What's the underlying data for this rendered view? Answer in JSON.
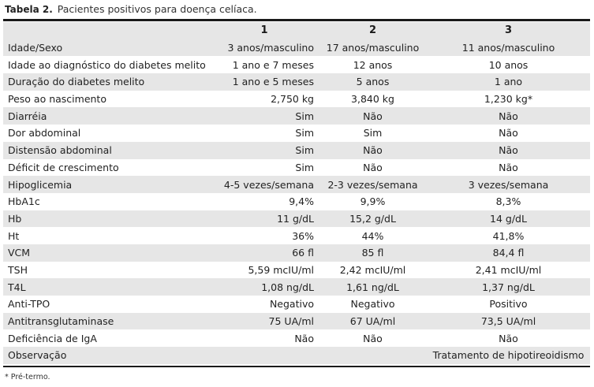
{
  "caption": {
    "label": "Tabela 2.",
    "title": "Pacientes positivos para doença celíaca."
  },
  "table": {
    "columns": [
      "",
      "1",
      "2",
      "3"
    ],
    "rows": [
      [
        "Idade/Sexo",
        "3 anos/masculino",
        "17 anos/masculino",
        "11 anos/masculino"
      ],
      [
        "Idade ao diagnóstico do diabetes melito",
        "1 ano e 7 meses",
        "12 anos",
        "10 anos"
      ],
      [
        "Duração do diabetes melito",
        "1 ano e 5 meses",
        "5 anos",
        "1 ano"
      ],
      [
        "Peso ao nascimento",
        "2,750 kg",
        "3,840 kg",
        "1,230 kg*"
      ],
      [
        "Diarréia",
        "Sim",
        "Não",
        "Não"
      ],
      [
        "Dor abdominal",
        "Sim",
        "Sim",
        "Não"
      ],
      [
        "Distensão abdominal",
        "Sim",
        "Não",
        "Não"
      ],
      [
        "Déficit de crescimento",
        "Sim",
        "Não",
        "Não"
      ],
      [
        "Hipoglicemia",
        "4-5 vezes/semana",
        "2-3 vezes/semana",
        "3 vezes/semana"
      ],
      [
        "HbA1c",
        "9,4%",
        "9,9%",
        "8,3%"
      ],
      [
        "Hb",
        "11 g/dL",
        "15,2 g/dL",
        "14 g/dL"
      ],
      [
        "Ht",
        "36%",
        "44%",
        "41,8%"
      ],
      [
        "VCM",
        "66 fl",
        "85 fl",
        "84,4 fl"
      ],
      [
        "TSH",
        "5,59 mcIU/ml",
        "2,42 mcIU/ml",
        "2,41 mcIU/ml"
      ],
      [
        "T4L",
        "1,08 ng/dL",
        "1,61 ng/dL",
        "1,37 ng/dL"
      ],
      [
        "Anti-TPO",
        "Negativo",
        "Negativo",
        "Positivo"
      ],
      [
        "Antitransglutaminase",
        "75 UA/ml",
        "67 UA/ml",
        "73,5 UA/ml"
      ],
      [
        "Deficiência de IgA",
        "Não",
        "Não",
        "Não"
      ],
      [
        "Observação",
        "",
        "",
        "Tratamento de hipotireoidismo"
      ]
    ]
  },
  "footnote": "* Pré-termo.",
  "colors": {
    "shade": "#e6e6e6",
    "rule": "#1a1a1a"
  }
}
